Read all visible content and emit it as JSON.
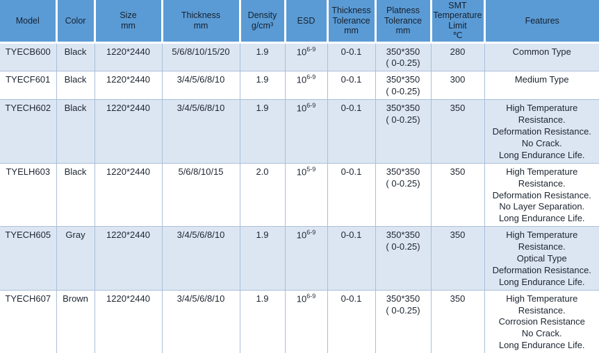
{
  "colors": {
    "header_bg": "#5b9bd5",
    "alt_row_bg": "#dce6f2",
    "grid_line": "#a9bfd9",
    "header_divider": "#ffffff",
    "text": "#1c2430"
  },
  "chart_data": {
    "type": "table",
    "columns": [
      "Model",
      "Color",
      "Size\nmm",
      "Thickness\nmm",
      "Density\ng/cm³",
      "ESD",
      "Thickness\nTolerance\nmm",
      "Platness\nTolerance\nmm",
      "SMT\nTemperature\nLimit\n℃",
      "Features"
    ],
    "rows": [
      {
        "model": "TYECB600",
        "color": "Black",
        "size": "1220*2440",
        "thickness": "5/6/8/10/15/20",
        "density": "1.9",
        "esd_base": "10",
        "esd_exp": "6-9",
        "thickness_tolerance": "0-0.1",
        "platness_tolerance": "350*350\n( 0-0.25)",
        "smt_temperature_limit": "280",
        "features": "Common Type"
      },
      {
        "model": "TYECF601",
        "color": "Black",
        "size": "1220*2440",
        "thickness": "3/4/5/6/8/10",
        "density": "1.9",
        "esd_base": "10",
        "esd_exp": "6-9",
        "thickness_tolerance": "0-0.1",
        "platness_tolerance": "350*350\n( 0-0.25)",
        "smt_temperature_limit": "300",
        "features": "Medium Type"
      },
      {
        "model": "TYECH602",
        "color": "Black",
        "size": "1220*2440",
        "thickness": "3/4/5/6/8/10",
        "density": "1.9",
        "esd_base": "10",
        "esd_exp": "6-9",
        "thickness_tolerance": "0-0.1",
        "platness_tolerance": "350*350\n( 0-0.25)",
        "smt_temperature_limit": "350",
        "features": "High Temperature\nResistance.\nDeformation Resistance.\nNo Crack.\nLong Endurance Life."
      },
      {
        "model": "TYELH603",
        "color": "Black",
        "size": "1220*2440",
        "thickness": "5/6/8/10/15",
        "density": "2.0",
        "esd_base": "10",
        "esd_exp": "5-9",
        "thickness_tolerance": "0-0.1",
        "platness_tolerance": "350*350\n( 0-0.25)",
        "smt_temperature_limit": "350",
        "features": "High Temperature\nResistance.\nDeformation Resistance.\nNo Layer Separation.\nLong Endurance Life."
      },
      {
        "model": "TYECH605",
        "color": "Gray",
        "size": "1220*2440",
        "thickness": "3/4/5/6/8/10",
        "density": "1.9",
        "esd_base": "10",
        "esd_exp": "6-9",
        "thickness_tolerance": "0-0.1",
        "platness_tolerance": "350*350\n( 0-0.25)",
        "smt_temperature_limit": "350",
        "features": "High Temperature\nResistance.\nOptical Type\nDeformation Resistance.\nLong Endurance Life."
      },
      {
        "model": "TYECH607",
        "color": "Brown",
        "size": "1220*2440",
        "thickness": "3/4/5/6/8/10",
        "density": "1.9",
        "esd_base": "10",
        "esd_exp": "6-9",
        "thickness_tolerance": "0-0.1",
        "platness_tolerance": "350*350\n( 0-0.25)",
        "smt_temperature_limit": "350",
        "features": "High Temperature\nResistance.\nCorrosion Resistance\nNo Crack.\nLong Endurance Life."
      }
    ]
  }
}
